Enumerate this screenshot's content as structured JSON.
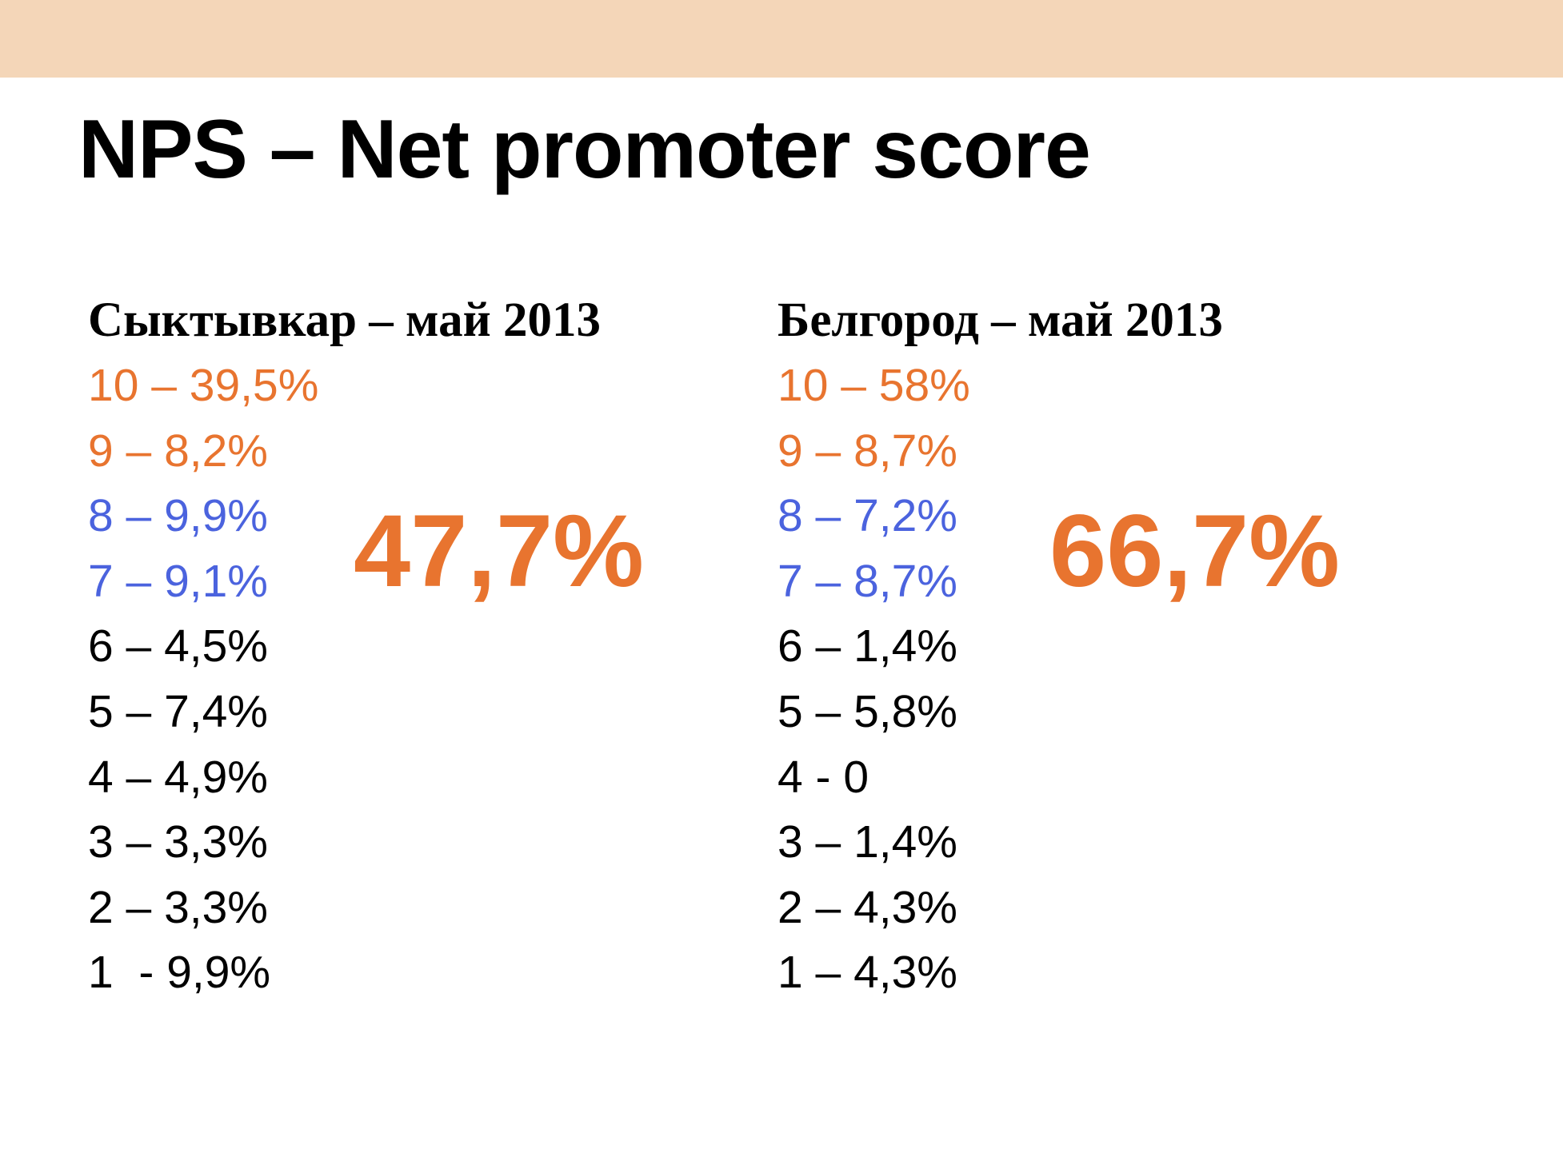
{
  "header": {
    "title": "NPS – Net promoter score"
  },
  "columns": [
    {
      "heading": "Сыктывкар – май 2013",
      "rows": [
        {
          "text": "10 – 39,5%",
          "color": "#e8742f"
        },
        {
          "text": "9 – 8,2%",
          "color": "#e8742f"
        },
        {
          "text": "8 – 9,9%",
          "color": "#4b63de"
        },
        {
          "text": "7 – 9,1%",
          "color": "#4b63de"
        },
        {
          "text": "6 – 4,5%",
          "color": "#000000"
        },
        {
          "text": "5 – 7,4%",
          "color": "#000000"
        },
        {
          "text": "4 – 4,9%",
          "color": "#000000"
        },
        {
          "text": "3 – 3,3%",
          "color": "#000000"
        },
        {
          "text": "2 – 3,3%",
          "color": "#000000"
        },
        {
          "text": "1  - 9,9%",
          "color": "#000000"
        }
      ],
      "score": {
        "text": "47,7%",
        "color": "#e8742f"
      }
    },
    {
      "heading": "Белгород – май 2013",
      "rows": [
        {
          "text": "10 – 58%",
          "color": "#e8742f"
        },
        {
          "text": "9 – 8,7%",
          "color": "#e8742f"
        },
        {
          "text": "8 – 7,2%",
          "color": "#4b63de"
        },
        {
          "text": "7 – 8,7%",
          "color": "#4b63de"
        },
        {
          "text": "6 – 1,4%",
          "color": "#000000"
        },
        {
          "text": "5 – 5,8%",
          "color": "#000000"
        },
        {
          "text": "4 - 0",
          "color": "#000000"
        },
        {
          "text": "3 – 1,4%",
          "color": "#000000"
        },
        {
          "text": "2 – 4,3%",
          "color": "#000000"
        },
        {
          "text": "1 – 4,3%",
          "color": "#000000"
        }
      ],
      "score": {
        "text": "66,7%",
        "color": "#e8742f"
      }
    }
  ]
}
